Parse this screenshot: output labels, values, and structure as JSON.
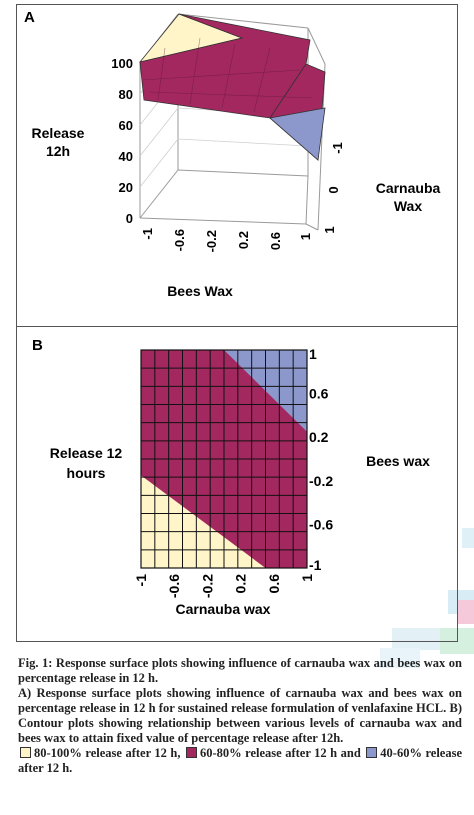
{
  "chart_data": [
    {
      "panel_label": "A",
      "type": "surface",
      "zlabel": [
        "Release",
        "12h"
      ],
      "xlabel": "Bees Wax",
      "ylabel": [
        "Carnauba",
        "Wax"
      ],
      "x_ticks": [
        "-1",
        "-0.6",
        "-0.2",
        "0.2",
        "0.6",
        "1"
      ],
      "y_ticks": [
        "-1",
        "0",
        "1"
      ],
      "z_ticks": [
        "0",
        "20",
        "40",
        "60",
        "80",
        "100"
      ],
      "zlim": [
        0,
        100
      ],
      "bands": [
        {
          "range": "80-100%",
          "color": "#fff5c8"
        },
        {
          "range": "60-80%",
          "color": "#a3285f"
        },
        {
          "range": "40-60%",
          "color": "#8c98cc"
        }
      ]
    },
    {
      "panel_label": "B",
      "type": "contour",
      "xlabel": "Carnauba wax",
      "ylabel": "Bees wax",
      "zlabel": [
        "Release 12",
        "hours"
      ],
      "x_ticks": [
        "-1",
        "-0.6",
        "-0.2",
        "0.2",
        "0.6",
        "1"
      ],
      "y_ticks": [
        "1",
        "0.6",
        "0.2",
        "-0.2",
        "-0.6",
        "-1"
      ],
      "xlim": [
        -1,
        1
      ],
      "ylim": [
        -1,
        1
      ],
      "grid": true,
      "regions": [
        {
          "range": "80-100%",
          "color": "#fff5c8",
          "boundary": [
            [
              -1,
              -0.15
            ],
            [
              0.5,
              -1
            ]
          ]
        },
        {
          "range": "60-80%",
          "color": "#a3285f"
        },
        {
          "range": "40-60%",
          "color": "#8c98cc",
          "boundary": [
            [
              0.0,
              1
            ],
            [
              1,
              0.25
            ]
          ]
        }
      ]
    }
  ],
  "caption": {
    "line1": "Fig. 1: Response surface plots showing influence of carnauba wax and bees wax on percentage release in 12 h.",
    "line2": "A) Response surface plots showing influence of carnauba wax and bees wax on percentage release in 12 h for sustained release formulation of venlafaxine HCL. B) Contour plots showing relationship between various levels of carnauba wax and bees wax to attain fixed value of percentage release after 12h.",
    "legend1": "80-100% release after 12 h,",
    "legend2": "60-80% release after 12 h and",
    "legend3": "40-60% release after 12 h."
  },
  "colors": {
    "yellow": "#fff5c8",
    "magenta": "#a3285f",
    "blue": "#8c98cc"
  }
}
